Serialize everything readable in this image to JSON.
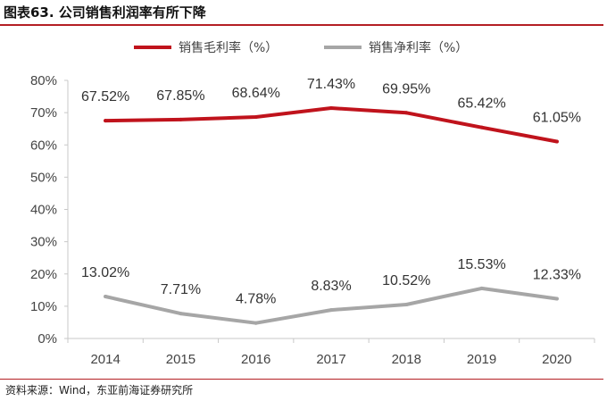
{
  "figure": {
    "title": "图表63. 公司销售利润率有所下降",
    "source": "资料来源：Wind，东亚前海证券研究所"
  },
  "chart_data": {
    "type": "line",
    "categories": [
      "2014",
      "2015",
      "2016",
      "2017",
      "2018",
      "2019",
      "2020"
    ],
    "ylim": [
      0,
      80
    ],
    "yticks": [
      "0%",
      "10%",
      "20%",
      "30%",
      "40%",
      "50%",
      "60%",
      "70%",
      "80%"
    ],
    "grid": false,
    "legend_position": "top",
    "series": [
      {
        "name": "销售毛利率（%）",
        "color": "#c0131c",
        "values": [
          67.52,
          67.85,
          68.64,
          71.43,
          69.95,
          65.42,
          61.05
        ],
        "labels": [
          "67.52%",
          "67.85%",
          "68.64%",
          "71.43%",
          "69.95%",
          "65.42%",
          "61.05%"
        ]
      },
      {
        "name": "销售净利率（%）",
        "color": "#a6a6a6",
        "values": [
          13.02,
          7.71,
          4.78,
          8.83,
          10.52,
          15.53,
          12.33
        ],
        "labels": [
          "13.02%",
          "7.71%",
          "4.78%",
          "8.83%",
          "10.52%",
          "15.53%",
          "12.33%"
        ]
      }
    ]
  }
}
